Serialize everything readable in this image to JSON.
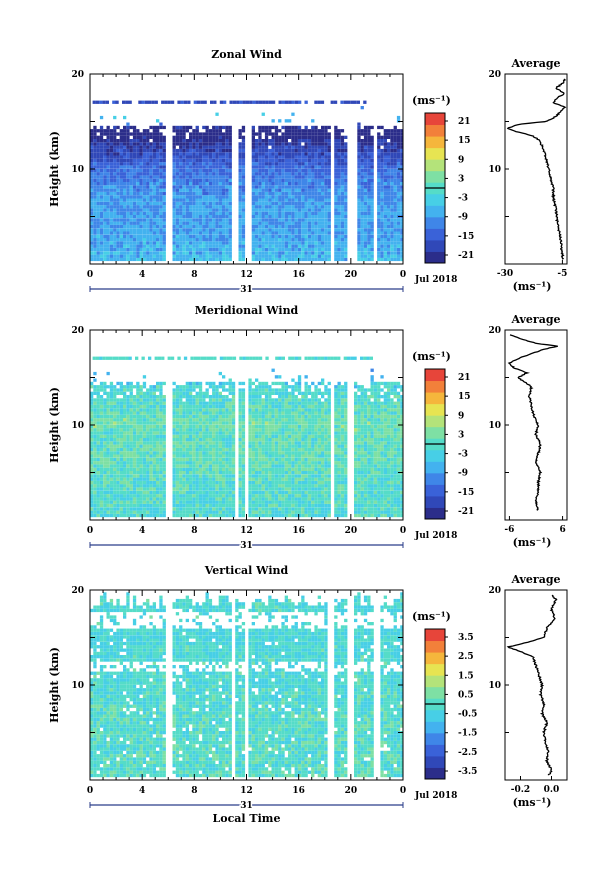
{
  "chart_data": [
    {
      "type": "heatmap",
      "title": "Zonal Wind",
      "ylabel": "Height (km)",
      "xlabel": "",
      "x_ticks": [
        "0",
        "4",
        "8",
        "12",
        "16",
        "20",
        "0"
      ],
      "y_ticks": [
        "10",
        "20"
      ],
      "date_label": "31",
      "month_label": "Jul 2018",
      "ylim": [
        0,
        20
      ],
      "xlim": [
        0,
        24
      ],
      "colorbar": {
        "unit": "(ms⁻¹)",
        "ticks": [
          "21",
          "15",
          "9",
          "3",
          "-3",
          "-9",
          "-15",
          "-21"
        ],
        "range": [
          -24,
          24
        ]
      },
      "field": {
        "mean_profile": [
          [
            0,
            -6
          ],
          [
            2,
            -8
          ],
          [
            4,
            -9
          ],
          [
            6,
            -9
          ],
          [
            8,
            -11
          ],
          [
            10,
            -14
          ],
          [
            11,
            -17
          ],
          [
            12,
            -19
          ],
          [
            13,
            -22
          ],
          [
            14,
            -26
          ],
          [
            15,
            -4
          ],
          [
            16,
            -8
          ],
          [
            17,
            -16
          ],
          [
            18,
            -20
          ]
        ],
        "noise": 3
      },
      "gaps": [
        [
          5.8,
          6.2
        ],
        [
          10.8,
          11.2
        ],
        [
          11.7,
          12.2
        ],
        [
          18.3,
          18.7
        ],
        [
          19.7,
          20.3
        ],
        [
          21.6,
          22.0
        ]
      ],
      "average": {
        "title": "Average",
        "unit": "(ms⁻¹)",
        "x_ticks": [
          "-30",
          "-5"
        ],
        "xlim": [
          -30,
          -3
        ],
        "y_ticks": [
          "10",
          "20"
        ],
        "profile": [
          [
            0.5,
            -5
          ],
          [
            1,
            -5
          ],
          [
            2,
            -5.5
          ],
          [
            3,
            -6
          ],
          [
            4,
            -7
          ],
          [
            5,
            -7.5
          ],
          [
            6,
            -8
          ],
          [
            7,
            -9
          ],
          [
            8,
            -9
          ],
          [
            9,
            -10
          ],
          [
            10,
            -11
          ],
          [
            11,
            -12
          ],
          [
            12,
            -13
          ],
          [
            13,
            -15
          ],
          [
            13.5,
            -18
          ],
          [
            14,
            -26
          ],
          [
            14.3,
            -29
          ],
          [
            14.7,
            -24
          ],
          [
            15,
            -12
          ],
          [
            15.5,
            -8
          ],
          [
            16,
            -6
          ],
          [
            16.5,
            -4
          ],
          [
            17,
            -9
          ],
          [
            17.5,
            -7
          ],
          [
            18,
            -4
          ],
          [
            18.5,
            -8
          ],
          [
            19,
            -5
          ],
          [
            19.5,
            -4
          ]
        ]
      }
    },
    {
      "type": "heatmap",
      "title": "Meridional Wind",
      "ylabel": "Height (km)",
      "xlabel": "",
      "x_ticks": [
        "0",
        "4",
        "8",
        "12",
        "16",
        "20",
        "0"
      ],
      "y_ticks": [
        "10",
        "20"
      ],
      "date_label": "31",
      "month_label": "Jul 2018",
      "ylim": [
        0,
        20
      ],
      "xlim": [
        0,
        24
      ],
      "colorbar": {
        "unit": "(ms⁻¹)",
        "ticks": [
          "21",
          "15",
          "9",
          "3",
          "-3",
          "-9",
          "-15",
          "-21"
        ],
        "range": [
          -24,
          24
        ]
      },
      "field": {
        "mean_profile": [
          [
            0,
            -1
          ],
          [
            2,
            -1
          ],
          [
            4,
            0
          ],
          [
            6,
            1
          ],
          [
            8,
            1
          ],
          [
            10,
            2
          ],
          [
            12,
            0
          ],
          [
            14,
            -2
          ],
          [
            15,
            -6
          ],
          [
            16,
            -8
          ],
          [
            17,
            0
          ],
          [
            18,
            -3
          ]
        ],
        "noise": 4
      },
      "gaps": [
        [
          5.8,
          6.1
        ],
        [
          10.9,
          11.2
        ],
        [
          11.7,
          12.1
        ],
        [
          18.3,
          18.6
        ],
        [
          19.7,
          20.1
        ]
      ],
      "average": {
        "title": "Average",
        "unit": "(ms⁻¹)",
        "x_ticks": [
          "-6",
          "6"
        ],
        "xlim": [
          -7,
          7
        ],
        "y_ticks": [
          "10",
          "20"
        ],
        "profile": [
          [
            1,
            0.5
          ],
          [
            2,
            0
          ],
          [
            3,
            0.5
          ],
          [
            4,
            0.5
          ],
          [
            5,
            1
          ],
          [
            6,
            0
          ],
          [
            7,
            0.5
          ],
          [
            8,
            1
          ],
          [
            9,
            0
          ],
          [
            10,
            0.5
          ],
          [
            11,
            -0.5
          ],
          [
            12,
            -1
          ],
          [
            13,
            -1.5
          ],
          [
            14,
            -1
          ],
          [
            15,
            -4
          ],
          [
            15.5,
            -2
          ],
          [
            16,
            -5
          ],
          [
            16.5,
            -6
          ],
          [
            17,
            -4
          ],
          [
            17.5,
            -1
          ],
          [
            18,
            2
          ],
          [
            18.3,
            5
          ],
          [
            18.6,
            0
          ],
          [
            19,
            -3
          ],
          [
            19.5,
            -6
          ]
        ]
      }
    },
    {
      "type": "heatmap",
      "title": "Vertical Wind",
      "ylabel": "Height (km)",
      "xlabel": "Local Time",
      "x_ticks": [
        "0",
        "4",
        "8",
        "12",
        "16",
        "20",
        "0"
      ],
      "y_ticks": [
        "10",
        "20"
      ],
      "date_label": "31",
      "month_label": "Jul 2018",
      "ylim": [
        0,
        20
      ],
      "xlim": [
        0,
        24
      ],
      "colorbar": {
        "unit": "(ms⁻¹)",
        "ticks": [
          "3.5",
          "2.5",
          "1.5",
          "0.5",
          "-0.5",
          "-1.5",
          "-2.5",
          "-3.5"
        ],
        "range": [
          -4,
          4
        ]
      },
      "field": {
        "mean_profile": [
          [
            0,
            0
          ],
          [
            5,
            0
          ],
          [
            10,
            -0.2
          ],
          [
            15,
            -0.3
          ],
          [
            20,
            -0.2
          ]
        ],
        "noise": 0.6
      },
      "gaps": [
        [
          5.8,
          6.2
        ],
        [
          10.8,
          11.1
        ],
        [
          11.7,
          12.1
        ],
        [
          18.2,
          18.6
        ],
        [
          19.6,
          20.2
        ],
        [
          21.7,
          22.1
        ]
      ],
      "average": {
        "title": "Average",
        "unit": "(ms⁻¹)",
        "x_ticks": [
          "-0.2",
          "0.0"
        ],
        "xlim": [
          -0.3,
          0.1
        ],
        "y_ticks": [
          "10",
          "20"
        ],
        "profile": [
          [
            0.5,
            -0.02
          ],
          [
            1,
            0.0
          ],
          [
            2,
            -0.03
          ],
          [
            3,
            -0.02
          ],
          [
            4,
            -0.04
          ],
          [
            5,
            -0.05
          ],
          [
            6,
            -0.03
          ],
          [
            7,
            -0.06
          ],
          [
            8,
            -0.05
          ],
          [
            9,
            -0.07
          ],
          [
            10,
            -0.06
          ],
          [
            11,
            -0.08
          ],
          [
            12,
            -0.1
          ],
          [
            13,
            -0.12
          ],
          [
            13.5,
            -0.2
          ],
          [
            14,
            -0.28
          ],
          [
            14.5,
            -0.15
          ],
          [
            15,
            -0.05
          ],
          [
            16,
            -0.03
          ],
          [
            17,
            0.02
          ],
          [
            18,
            0.0
          ],
          [
            19,
            0.03
          ],
          [
            19.5,
            0.0
          ]
        ]
      }
    }
  ]
}
